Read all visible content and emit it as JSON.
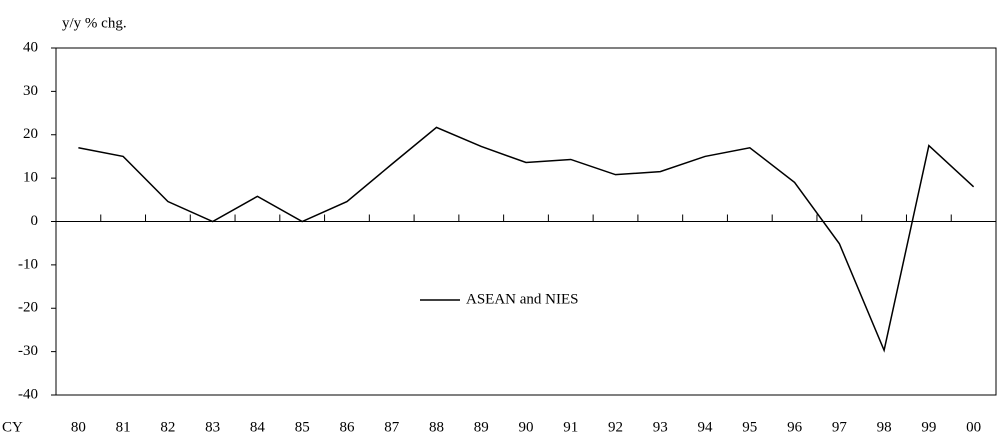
{
  "chart_data": {
    "type": "line",
    "y_label": "y/y % chg.",
    "x_label": "CY",
    "categories": [
      "80",
      "81",
      "82",
      "83",
      "84",
      "85",
      "86",
      "87",
      "88",
      "89",
      "90",
      "91",
      "92",
      "93",
      "94",
      "95",
      "96",
      "97",
      "98",
      "99",
      "00"
    ],
    "series": [
      {
        "name": "ASEAN and NIES",
        "color": "#000000",
        "values": [
          17.0,
          15.0,
          4.6,
          0,
          5.8,
          0,
          4.6,
          13.2,
          21.7,
          17.3,
          13.6,
          14.3,
          10.8,
          11.5,
          15.0,
          17.0,
          9.0,
          -5.1,
          -29.7,
          17.5,
          8.0
        ]
      }
    ],
    "ylim": [
      -40,
      40
    ],
    "yticks": [
      -40,
      -30,
      -20,
      -10,
      0,
      10,
      20,
      30,
      40
    ],
    "legend": "center",
    "grid": false
  }
}
